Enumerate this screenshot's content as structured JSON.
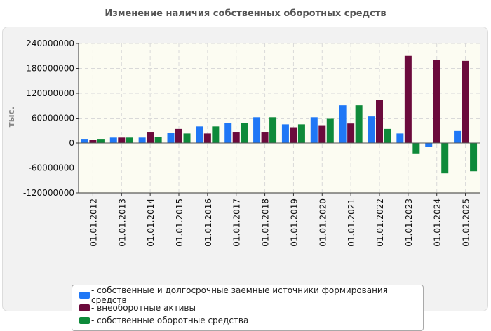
{
  "title": "Изменение наличия собственных оборотных средств",
  "colors": {
    "series1": "#1f77f6",
    "series2": "#6b0a3c",
    "series3": "#0e8a3a",
    "plot_bg": "#fcfcf2",
    "panel_bg": "#f2f2f2",
    "grid": "#d9d9d9"
  },
  "chart_data": {
    "type": "bar",
    "title": "Изменение наличия собственных оборотных средств",
    "ylabel": "тыс.",
    "xlabel": "",
    "ylim": [
      -120000000,
      240000000
    ],
    "yticks": [
      240000000,
      180000000,
      120000000,
      60000000,
      0,
      -60000000,
      -120000000
    ],
    "ytick_labels": [
      "240000000",
      "180000000",
      "120000000",
      "60000000",
      "0",
      "-60000000",
      "-120000000"
    ],
    "grid": true,
    "legend_position": "bottom",
    "categories": [
      "01.01.2012",
      "01.01.2013",
      "01.01.2014",
      "01.01.2015",
      "01.01.2016",
      "01.01.2017",
      "01.01.2018",
      "01.01.2019",
      "01.01.2020",
      "01.01.2021",
      "01.01.2022",
      "01.01.2023",
      "01.01.2024",
      "01.01.2025"
    ],
    "series": [
      {
        "name": "- собственные и долгосрочные заемные источники формирования средств",
        "values": [
          10000000,
          13000000,
          13000000,
          25000000,
          40000000,
          49000000,
          62000000,
          45000000,
          62000000,
          91000000,
          64000000,
          23000000,
          -10000000,
          29000000
        ]
      },
      {
        "name": "- внеоборотные активы",
        "values": [
          8000000,
          13000000,
          27000000,
          34000000,
          23000000,
          27000000,
          27000000,
          38000000,
          43000000,
          47000000,
          104000000,
          210000000,
          201000000,
          198000000
        ]
      },
      {
        "name": "- собственные оборотные средства",
        "values": [
          10000000,
          13000000,
          15000000,
          23000000,
          40000000,
          49000000,
          62000000,
          45000000,
          60000000,
          91000000,
          34000000,
          -25000000,
          -73000000,
          -68000000
        ]
      }
    ]
  }
}
